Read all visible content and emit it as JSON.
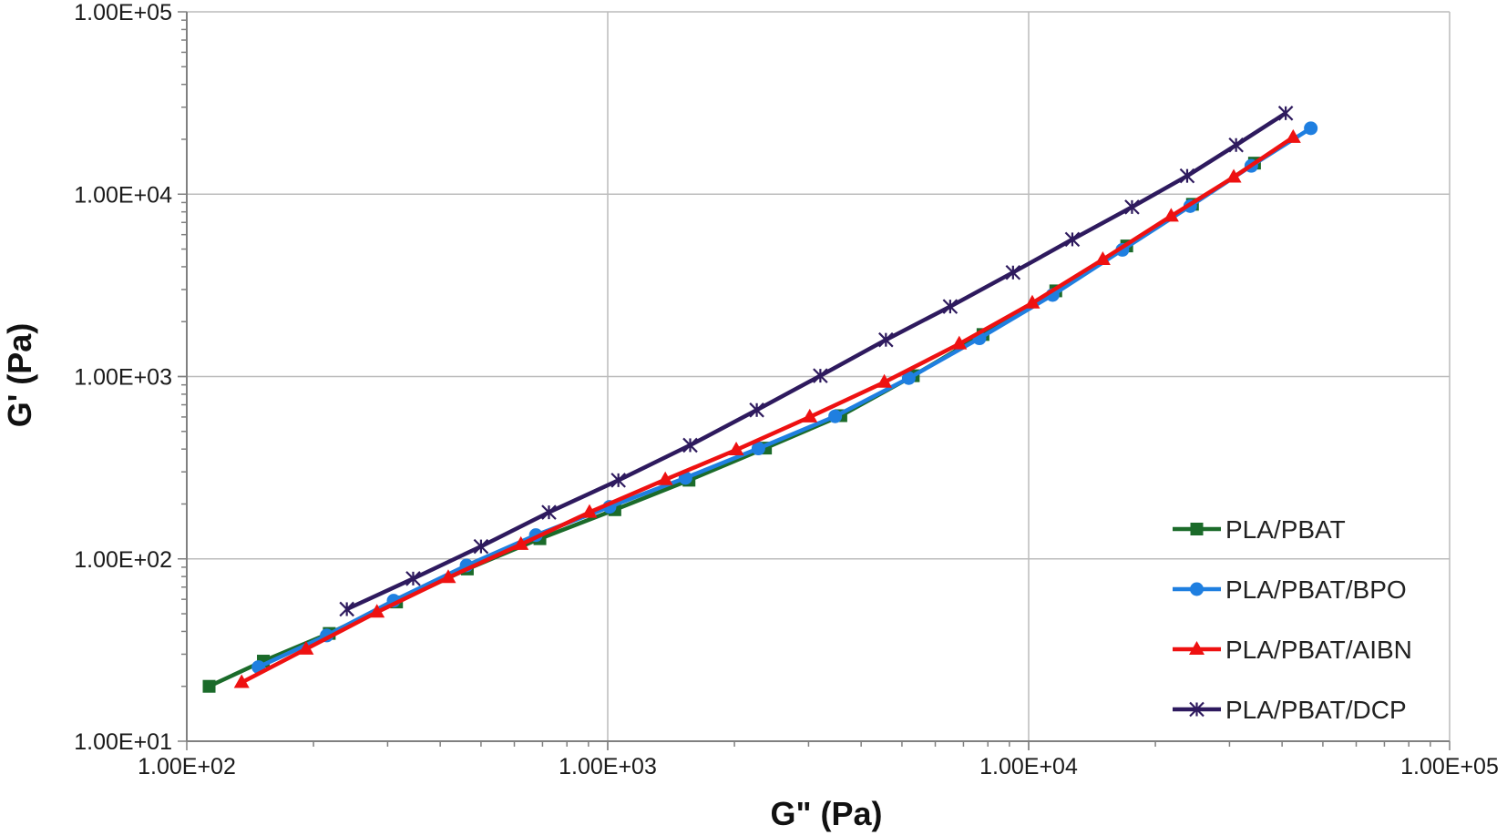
{
  "chart_data": {
    "type": "scatter",
    "xlabel": "G\"  (Pa)",
    "ylabel": "G' (Pa)",
    "xscale": "log",
    "yscale": "log",
    "xlim": [
      100,
      100000
    ],
    "ylim": [
      10,
      100000
    ],
    "grid": true,
    "legend_position": "bottom-right",
    "x_tick_values": [
      100,
      1000,
      10000,
      100000
    ],
    "x_tick_labels": [
      "1.00E+02",
      "1.00E+03",
      "1.00E+04",
      "1.00E+05"
    ],
    "y_tick_values": [
      10,
      100,
      1000,
      10000,
      100000
    ],
    "y_tick_labels": [
      "1.00E+01",
      "1.00E+02",
      "1.00E+03",
      "1.00E+04",
      "1.00E+05"
    ],
    "series": [
      {
        "name": "PLA/PBAT",
        "color": "#1b6b2a",
        "marker": "square",
        "x": [
          113,
          152,
          218,
          315,
          464,
          690,
          1040,
          1560,
          2370,
          3580,
          5320,
          7790,
          11600,
          17100,
          24500,
          34400
        ],
        "y": [
          20,
          27.5,
          39,
          58,
          88,
          129,
          186,
          270,
          405,
          610,
          1010,
          1700,
          2950,
          5200,
          8800,
          14800
        ]
      },
      {
        "name": "PLA/PBAT/BPO",
        "color": "#1f7fe0",
        "marker": "circle",
        "x": [
          148,
          215,
          310,
          462,
          675,
          1010,
          1530,
          2280,
          3470,
          5190,
          7640,
          11400,
          16700,
          24200,
          33800,
          46800
        ],
        "y": [
          25.5,
          38,
          59,
          92,
          135,
          193,
          278,
          403,
          605,
          980,
          1620,
          2800,
          4950,
          8600,
          14300,
          23000
        ]
      },
      {
        "name": "PLA/PBAT/AIBN",
        "color": "#ee1111",
        "marker": "triangle",
        "x": [
          135,
          192,
          283,
          418,
          622,
          905,
          1370,
          2020,
          3020,
          4540,
          6840,
          10200,
          15000,
          21800,
          30700,
          42500
        ],
        "y": [
          21,
          32,
          51,
          79,
          120,
          180,
          272,
          396,
          600,
          930,
          1510,
          2530,
          4380,
          7580,
          12400,
          20500
        ]
      },
      {
        "name": "PLA/PBAT/DCP",
        "color": "#2e1a5e",
        "marker": "star",
        "x": [
          240,
          345,
          500,
          725,
          1060,
          1570,
          2260,
          3200,
          4580,
          6510,
          9180,
          12700,
          17600,
          23800,
          31100,
          40800
        ],
        "y": [
          53,
          78,
          117,
          180,
          270,
          420,
          655,
          1010,
          1590,
          2420,
          3720,
          5650,
          8500,
          12600,
          18600,
          27800
        ]
      }
    ]
  }
}
